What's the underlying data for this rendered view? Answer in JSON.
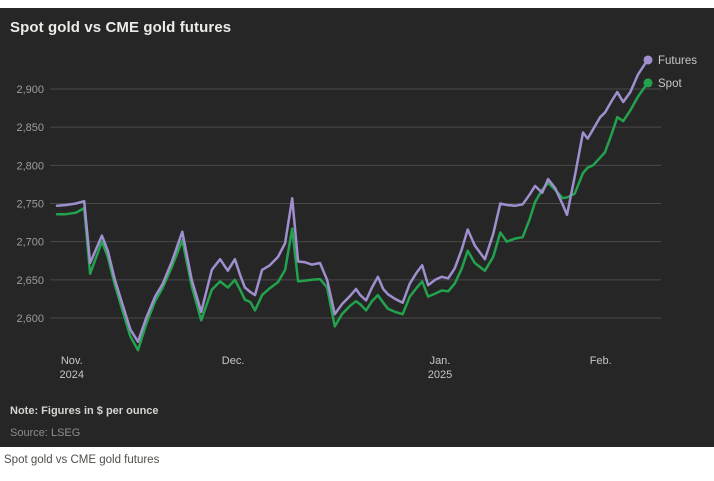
{
  "header": {
    "title": "Spot gold vs CME gold futures"
  },
  "footer": {
    "note": "Note: Figures in $ per ounce",
    "source": "Source: LSEG",
    "caption": "Spot gold vs CME gold futures"
  },
  "colors": {
    "panel_background": "#262626",
    "page_background": "#ffffff",
    "gridline": "#4a4a4a",
    "y_tick_text": "#9c9c9c",
    "x_tick_text": "#c6c6c6",
    "title_text": "#edebe8",
    "legend_text": "#c9c7c5",
    "futures_line": "#a08fce",
    "spot_line": "#23a24d"
  },
  "chart_data": {
    "type": "line",
    "title": "Spot gold vs CME gold futures",
    "ylabel": "",
    "xlabel": "",
    "unit_note": "Figures in $ per ounce",
    "source": "LSEG",
    "grid": true,
    "legend_position": "end-of-line",
    "ylim": [
      2545,
      2950
    ],
    "y_ticks": [
      2900,
      2850,
      2800,
      2750,
      2700,
      2650,
      2600
    ],
    "x_ticks": [
      {
        "label": "Nov.",
        "sub": "2024",
        "pct": 2.5
      },
      {
        "label": "Dec.",
        "sub": "",
        "pct": 29.8
      },
      {
        "label": "Jan.",
        "sub": "2025",
        "pct": 64.8
      },
      {
        "label": "Feb.",
        "sub": "",
        "pct": 92.0
      }
    ],
    "x_pct": [
      0,
      1.5,
      3.2,
      4.6,
      5.6,
      7.6,
      8.6,
      9.8,
      11,
      12.4,
      13.7,
      15.1,
      16.6,
      17.9,
      19.5,
      21.2,
      22.8,
      24.4,
      26.2,
      27.6,
      28.9,
      30.1,
      31,
      31.8,
      32.7,
      33.5,
      34.7,
      36,
      37.4,
      38.6,
      39.8,
      40.8,
      42,
      43.1,
      44.5,
      45.7,
      47,
      48.2,
      49.6,
      50.6,
      51.3,
      52.3,
      53.3,
      54.3,
      55.2,
      56,
      57.2,
      58.5,
      59.7,
      60.9,
      61.8,
      62.8,
      64,
      65.1,
      66.2,
      67.3,
      68.5,
      69.5,
      70.7,
      72.4,
      73.8,
      75,
      76.1,
      77.5,
      78.8,
      80,
      80.9,
      82.1,
      83.1,
      84.3,
      85.6,
      86.3,
      87.6,
      89,
      89.8,
      90.7,
      91.9,
      92.7,
      93.9,
      94.8,
      95.8,
      97,
      98.3,
      99.5,
      100
    ],
    "series": [
      {
        "name": "Futures",
        "color": "#a08fce",
        "values": [
          2747,
          2748,
          2750,
          2753,
          2672,
          2708,
          2688,
          2650,
          2620,
          2585,
          2569,
          2600,
          2628,
          2645,
          2675,
          2713,
          2650,
          2608,
          2663,
          2677,
          2662,
          2677,
          2656,
          2640,
          2634,
          2630,
          2663,
          2669,
          2680,
          2698,
          2757,
          2674,
          2673,
          2670,
          2672,
          2650,
          2605,
          2618,
          2629,
          2638,
          2630,
          2623,
          2640,
          2654,
          2638,
          2631,
          2625,
          2620,
          2645,
          2660,
          2669,
          2643,
          2650,
          2654,
          2652,
          2665,
          2690,
          2716,
          2695,
          2677,
          2710,
          2750,
          2748,
          2747,
          2749,
          2762,
          2773,
          2764,
          2782,
          2770,
          2748,
          2735,
          2785,
          2843,
          2835,
          2847,
          2863,
          2869,
          2885,
          2896,
          2883,
          2896,
          2919,
          2933,
          2938
        ]
      },
      {
        "name": "Spot",
        "color": "#23a24d",
        "values": [
          2736,
          2736,
          2738,
          2744,
          2658,
          2700,
          2680,
          2643,
          2612,
          2576,
          2558,
          2592,
          2622,
          2640,
          2668,
          2702,
          2642,
          2597,
          2637,
          2648,
          2640,
          2650,
          2637,
          2624,
          2621,
          2610,
          2630,
          2639,
          2647,
          2663,
          2717,
          2648,
          2649,
          2650,
          2651,
          2640,
          2589,
          2605,
          2616,
          2622,
          2618,
          2610,
          2622,
          2630,
          2620,
          2612,
          2608,
          2605,
          2628,
          2640,
          2648,
          2628,
          2632,
          2636,
          2635,
          2645,
          2665,
          2688,
          2672,
          2662,
          2680,
          2712,
          2700,
          2704,
          2706,
          2730,
          2752,
          2768,
          2777,
          2768,
          2757,
          2758,
          2763,
          2790,
          2797,
          2800,
          2810,
          2817,
          2842,
          2863,
          2858,
          2872,
          2890,
          2903,
          2908
        ]
      }
    ]
  }
}
